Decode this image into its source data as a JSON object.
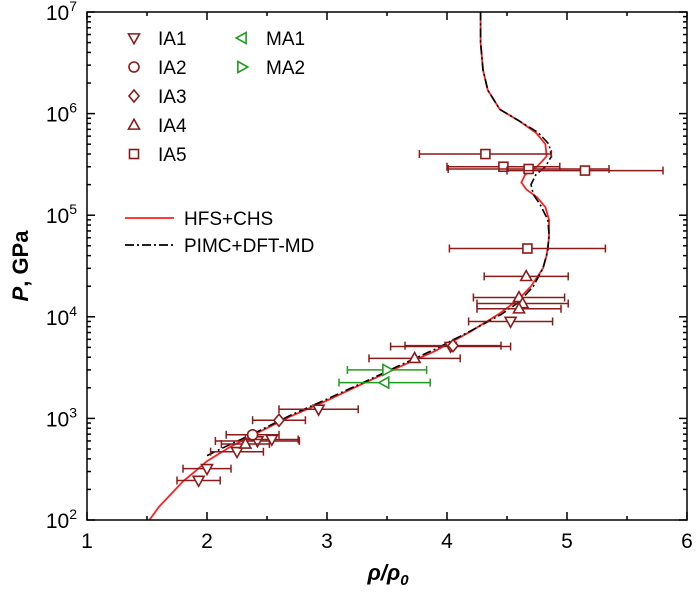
{
  "chart_data": {
    "type": "scatter",
    "xlabel": {
      "main": "ρ/ρ",
      "sub": "0"
    },
    "ylabel": {
      "italic": "P",
      "rest": ", GPa"
    },
    "xlim": [
      1,
      6
    ],
    "ylim": [
      100,
      10000000
    ],
    "y_scale": "log",
    "grid": false,
    "legend_position": "top-left",
    "x_ticks": [
      {
        "v": 1,
        "label": "1"
      },
      {
        "v": 2,
        "label": "2"
      },
      {
        "v": 3,
        "label": "3"
      },
      {
        "v": 4,
        "label": "4"
      },
      {
        "v": 5,
        "label": "5"
      },
      {
        "v": 6,
        "label": "6"
      }
    ],
    "y_ticks": [
      {
        "v": 100,
        "exp": "2"
      },
      {
        "v": 1000,
        "exp": "3"
      },
      {
        "v": 10000,
        "exp": "4"
      },
      {
        "v": 100000,
        "exp": "5"
      },
      {
        "v": 1000000,
        "exp": "6"
      },
      {
        "v": 10000000,
        "exp": "7"
      }
    ],
    "y_tick_base": "10",
    "colors": {
      "dark_red": "#8b1a1a",
      "green": "#1e9e1e",
      "red": "#ff2020",
      "black": "#000000"
    },
    "series": [
      {
        "name": "IA1",
        "marker": "triangle-down",
        "color": "#8b1a1a",
        "points": [
          {
            "x": 1.93,
            "y": 245,
            "xerr": 0.18
          },
          {
            "x": 2.0,
            "y": 320,
            "xerr": 0.2
          },
          {
            "x": 2.25,
            "y": 470,
            "xerr": 0.22
          },
          {
            "x": 2.42,
            "y": 600,
            "xerr": 0.35
          },
          {
            "x": 2.54,
            "y": 620,
            "xerr": 0.22
          },
          {
            "x": 2.93,
            "y": 1230,
            "xerr": 0.33
          },
          {
            "x": 4.03,
            "y": 5100,
            "xerr": 0.5
          },
          {
            "x": 4.53,
            "y": 9000,
            "xerr": 0.35
          }
        ]
      },
      {
        "name": "IA2",
        "marker": "circle",
        "color": "#8b1a1a",
        "points": [
          {
            "x": 2.38,
            "y": 690,
            "xerr": 0.22
          }
        ]
      },
      {
        "name": "IA3",
        "marker": "diamond",
        "color": "#8b1a1a",
        "points": [
          {
            "x": 2.6,
            "y": 960,
            "xerr": 0.22
          },
          {
            "x": 4.05,
            "y": 5200,
            "xerr": 0.4
          }
        ]
      },
      {
        "name": "IA4",
        "marker": "triangle-up",
        "color": "#8b1a1a",
        "points": [
          {
            "x": 2.32,
            "y": 560,
            "xerr": 0.2
          },
          {
            "x": 3.73,
            "y": 3900,
            "xerr": 0.38
          },
          {
            "x": 4.6,
            "y": 15500,
            "xerr": 0.38
          },
          {
            "x": 4.63,
            "y": 13500,
            "xerr": 0.38
          },
          {
            "x": 4.6,
            "y": 12000,
            "xerr": 0.35
          },
          {
            "x": 4.66,
            "y": 25000,
            "xerr": 0.35
          }
        ]
      },
      {
        "name": "IA5",
        "marker": "square",
        "color": "#8b1a1a",
        "points": [
          {
            "x": 4.32,
            "y": 400000,
            "xerr": 0.55
          },
          {
            "x": 4.47,
            "y": 300000,
            "xerr": 0.47
          },
          {
            "x": 4.67,
            "y": 47000,
            "xerr": 0.65
          },
          {
            "x": 4.68,
            "y": 285000,
            "xerr": 0.67
          },
          {
            "x": 5.15,
            "y": 275000,
            "xerr": 0.65
          }
        ]
      },
      {
        "name": "MA1",
        "marker": "triangle-left",
        "color": "#1e9e1e",
        "points": [
          {
            "x": 3.48,
            "y": 2250,
            "xerr": 0.38
          }
        ]
      },
      {
        "name": "MA2",
        "marker": "triangle-right",
        "color": "#1e9e1e",
        "points": [
          {
            "x": 3.5,
            "y": 3000,
            "xerr": 0.33
          }
        ]
      }
    ],
    "lines": [
      {
        "name": "HFS+CHS",
        "style": "solid",
        "color": "#ff2020",
        "points": [
          [
            1.52,
            100
          ],
          [
            1.6,
            135
          ],
          [
            1.7,
            180
          ],
          [
            1.8,
            240
          ],
          [
            1.9,
            300
          ],
          [
            2.0,
            380
          ],
          [
            2.2,
            530
          ],
          [
            2.4,
            700
          ],
          [
            2.7,
            1050
          ],
          [
            3.0,
            1500
          ],
          [
            3.3,
            2200
          ],
          [
            3.6,
            3200
          ],
          [
            3.9,
            4600
          ],
          [
            4.2,
            7200
          ],
          [
            4.45,
            11000
          ],
          [
            4.6,
            15000
          ],
          [
            4.7,
            20000
          ],
          [
            4.8,
            30000
          ],
          [
            4.83,
            40000
          ],
          [
            4.85,
            60000
          ],
          [
            4.85,
            90000
          ],
          [
            4.82,
            120000
          ],
          [
            4.75,
            150000
          ],
          [
            4.66,
            180000
          ],
          [
            4.62,
            210000
          ],
          [
            4.65,
            250000
          ],
          [
            4.75,
            300000
          ],
          [
            4.83,
            380000
          ],
          [
            4.82,
            500000
          ],
          [
            4.74,
            650000
          ],
          [
            4.6,
            850000
          ],
          [
            4.44,
            1100000
          ],
          [
            4.34,
            1700000
          ],
          [
            4.3,
            2700000
          ],
          [
            4.28,
            5000000
          ],
          [
            4.28,
            10000000
          ]
        ]
      },
      {
        "name": "PIMC+DFT-MD",
        "style": "dashdot",
        "color": "#000000",
        "points": [
          [
            2.0,
            430
          ],
          [
            2.2,
            560
          ],
          [
            2.4,
            720
          ],
          [
            2.7,
            1080
          ],
          [
            3.0,
            1550
          ],
          [
            3.3,
            2250
          ],
          [
            3.6,
            3300
          ],
          [
            3.9,
            4800
          ],
          [
            4.2,
            7300
          ],
          [
            4.45,
            10500
          ],
          [
            4.6,
            14000
          ],
          [
            4.72,
            20000
          ],
          [
            4.8,
            30000
          ],
          [
            4.84,
            45000
          ],
          [
            4.85,
            65000
          ],
          [
            4.84,
            90000
          ],
          [
            4.78,
            125000
          ],
          [
            4.72,
            160000
          ],
          [
            4.7,
            200000
          ],
          [
            4.74,
            250000
          ],
          [
            4.82,
            300000
          ],
          [
            4.87,
            380000
          ],
          [
            4.85,
            500000
          ],
          [
            4.76,
            650000
          ],
          [
            4.6,
            850000
          ],
          [
            4.44,
            1100000
          ],
          [
            4.34,
            1700000
          ],
          [
            4.3,
            2700000
          ],
          [
            4.28,
            5000000
          ],
          [
            4.28,
            10000000
          ]
        ]
      }
    ],
    "legend_entries": [
      {
        "label": "IA1",
        "marker": "triangle-down",
        "color": "#8b1a1a"
      },
      {
        "label": "IA2",
        "marker": "circle",
        "color": "#8b1a1a"
      },
      {
        "label": "IA3",
        "marker": "diamond",
        "color": "#8b1a1a"
      },
      {
        "label": "IA4",
        "marker": "triangle-up",
        "color": "#8b1a1a"
      },
      {
        "label": "IA5",
        "marker": "square",
        "color": "#8b1a1a"
      },
      {
        "label": "MA1",
        "marker": "triangle-left",
        "color": "#1e9e1e"
      },
      {
        "label": "MA2",
        "marker": "triangle-right",
        "color": "#1e9e1e"
      },
      {
        "label": "HFS+CHS",
        "line": "solid",
        "color": "#ff2020"
      },
      {
        "label": "PIMC+DFT-MD",
        "line": "dashdot",
        "color": "#000000"
      }
    ]
  }
}
